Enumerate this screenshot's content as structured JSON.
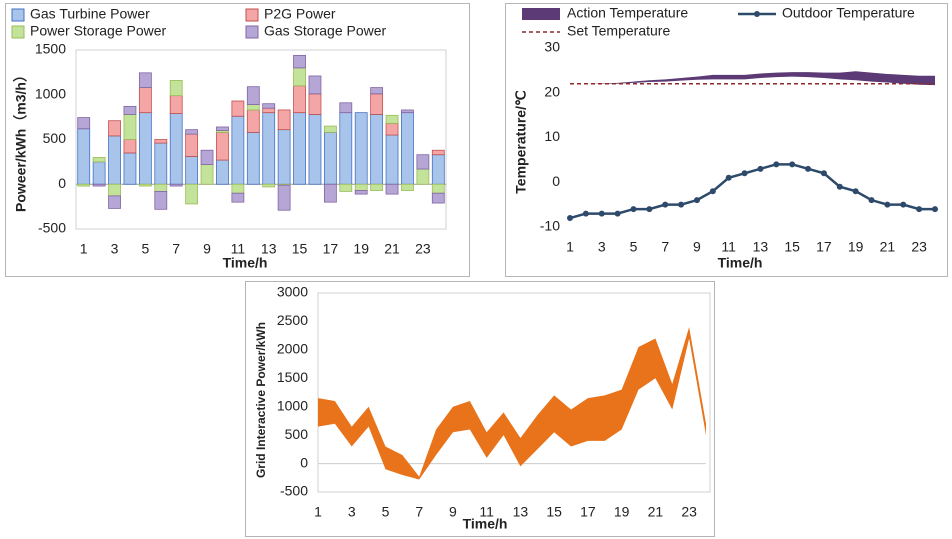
{
  "chart_data": [
    {
      "type": "bar",
      "y_label": "Poweer/kWh（m3/h）",
      "x_label": "Time/h",
      "x": [
        1,
        2,
        3,
        4,
        5,
        6,
        7,
        8,
        9,
        10,
        11,
        12,
        13,
        14,
        15,
        16,
        17,
        18,
        19,
        20,
        21,
        22,
        23,
        24
      ],
      "xlim": [
        0.5,
        24.5
      ],
      "xticks": [
        1,
        3,
        5,
        7,
        9,
        11,
        13,
        15,
        17,
        19,
        21,
        23
      ],
      "ylim": [
        -500,
        1500
      ],
      "yticks": [
        -500,
        0,
        500,
        1000,
        1500
      ],
      "series": [
        {
          "name": "Gas Turbine Power",
          "color": "#a9c4eb",
          "edge": "#4472c4",
          "values": [
            620,
            250,
            540,
            350,
            800,
            460,
            790,
            310,
            0,
            270,
            760,
            580,
            800,
            610,
            800,
            780,
            580,
            800,
            800,
            780,
            550,
            800,
            0,
            330
          ]
        },
        {
          "name": "P2G Power",
          "color": "#f4a6a6",
          "edge": "#c0504d",
          "values": [
            0,
            0,
            170,
            150,
            280,
            40,
            200,
            250,
            0,
            310,
            170,
            250,
            50,
            220,
            300,
            230,
            0,
            0,
            0,
            230,
            130,
            0,
            0,
            50
          ]
        },
        {
          "name": "Power Storage Power",
          "color": "#c3e39b",
          "edge": "#9bbb59",
          "values": [
            -20,
            50,
            -130,
            280,
            -20,
            -80,
            170,
            -220,
            220,
            20,
            -100,
            60,
            -30,
            -10,
            200,
            0,
            70,
            -80,
            -70,
            -70,
            90,
            -70,
            170,
            -100
          ]
        },
        {
          "name": "Gas Storage Power",
          "color": "#b6a6d6",
          "edge": "#8064a2",
          "values": [
            125,
            -20,
            -140,
            90,
            165,
            -200,
            -20,
            50,
            160,
            40,
            -100,
            200,
            50,
            -280,
            140,
            200,
            -200,
            110,
            -40,
            70,
            -110,
            30,
            160,
            -110
          ]
        }
      ]
    },
    {
      "type": "line",
      "y_label": "Temperature/℃",
      "x_label": "Time/h",
      "x": [
        1,
        2,
        3,
        4,
        5,
        6,
        7,
        8,
        9,
        10,
        11,
        12,
        13,
        14,
        15,
        16,
        17,
        18,
        19,
        20,
        21,
        22,
        23,
        24
      ],
      "xlim": [
        1,
        24
      ],
      "xticks": [
        1,
        3,
        5,
        7,
        9,
        11,
        13,
        15,
        17,
        19,
        21,
        23
      ],
      "ylim": [
        -10,
        30
      ],
      "yticks": [
        -10,
        0,
        10,
        20,
        30
      ],
      "series": [
        {
          "name": "Action Temperature",
          "color": "#5b3a75",
          "lower": [
            22,
            22,
            22,
            22,
            22.2,
            22.4,
            22.5,
            22.7,
            22.9,
            23,
            23,
            23,
            23.3,
            23.5,
            23.6,
            23.5,
            23.3,
            23,
            22.8,
            22.5,
            22.3,
            22,
            21.8,
            21.7
          ],
          "upper": [
            22,
            22,
            22.1,
            22.2,
            22.5,
            22.8,
            23,
            23.3,
            23.6,
            24,
            24,
            24,
            24.3,
            24.5,
            24.6,
            24.6,
            24.5,
            24.5,
            24.8,
            24.5,
            24.2,
            24,
            23.8,
            23.8
          ]
        },
        {
          "name": "Outdoor Temperature",
          "color": "#2e4a6b",
          "values": [
            -8,
            -7,
            -7,
            -7,
            -6,
            -6,
            -5,
            -5,
            -4,
            -2,
            1,
            2,
            3,
            4,
            4,
            3,
            2,
            -1,
            -2,
            -4,
            -5,
            -5,
            -6,
            -6
          ]
        },
        {
          "name": "Set Temperature",
          "color": "#8b2a2a",
          "value": 22
        }
      ]
    },
    {
      "type": "area",
      "y_label": "Grid Interactive Power/kWh",
      "x_label": "Time/h",
      "color": "#e8731a",
      "x": [
        1,
        2,
        3,
        4,
        5,
        6,
        7,
        8,
        9,
        10,
        11,
        12,
        13,
        14,
        15,
        16,
        17,
        18,
        19,
        20,
        21,
        22,
        23,
        24
      ],
      "xlim": [
        1,
        24
      ],
      "xticks": [
        1,
        3,
        5,
        7,
        9,
        11,
        13,
        15,
        17,
        19,
        21,
        23
      ],
      "ylim": [
        -500,
        3000
      ],
      "yticks": [
        -500,
        0,
        500,
        1000,
        1500,
        2000,
        2500,
        3000
      ],
      "lower": [
        650,
        700,
        300,
        650,
        -100,
        -200,
        -280,
        150,
        550,
        600,
        100,
        500,
        -50,
        250,
        550,
        300,
        400,
        400,
        600,
        1300,
        1500,
        950,
        2200,
        500
      ],
      "upper": [
        1150,
        1100,
        650,
        1000,
        300,
        150,
        -230,
        600,
        1000,
        1100,
        550,
        900,
        450,
        850,
        1200,
        950,
        1150,
        1200,
        1300,
        2050,
        2200,
        1400,
        2400,
        700
      ]
    }
  ]
}
